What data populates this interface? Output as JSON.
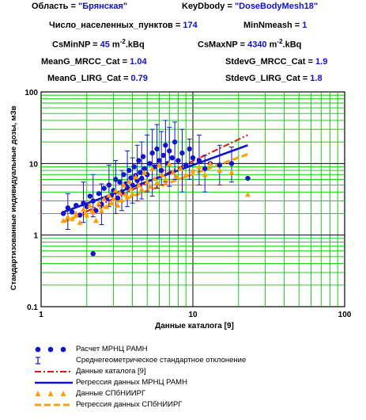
{
  "header": {
    "region_label": "Область = ",
    "region_value": "\"Брянская\"",
    "keydbody_label": "KeyDbody = ",
    "keydbody_value": "\"DoseBodyMesh18\"",
    "np_count_label": "Число_населенных_пунктов = ",
    "np_count_value": "174",
    "minnmeash_label": "MinNmeash = ",
    "minnmeash_value": "1",
    "csmin_label": "CsMinNP = ",
    "csmin_value": "45",
    "csmin_unit_a": " m",
    "csmin_unit_exp": "-2",
    "csmin_unit_b": ".kBq",
    "csmax_label": "CsMaxNP = ",
    "csmax_value": "4340",
    "csmax_unit_a": " m",
    "csmax_unit_exp": "-2",
    "csmax_unit_b": ".kBq",
    "meang_mrcc_label": "MeanG_MRCC_Cat = ",
    "meang_mrcc_value": "1.04",
    "stdevg_mrcc_label": "StdevG_MRCC_Cat = ",
    "stdevg_mrcc_value": "1.9",
    "meang_lirg_label": "MeanG_LIRG_Cat = ",
    "meang_lirg_value": "0.79",
    "stdevg_lirg_label": "StdevG_LIRG_Cat = ",
    "stdevg_lirg_value": "1.8"
  },
  "colors": {
    "grid": "#00c800",
    "mrcc": "#1414c8",
    "lirg": "#ffa000",
    "catalog": "#dc1414",
    "value": "#1010c8"
  },
  "chart_data": {
    "type": "scatter",
    "x_scale": "log",
    "y_scale": "log",
    "xlim": [
      1,
      100
    ],
    "ylim": [
      0.1,
      100
    ],
    "xlabel": "Данные каталога [9]",
    "ylabel": "Стандартизованные индивидуальные дозы, мЗв",
    "x_ticks": [
      "1",
      "10",
      "100"
    ],
    "y_ticks": [
      "0.1",
      "1",
      "10",
      "100"
    ],
    "grid": true,
    "series": [
      {
        "name": "Расчет МРНЦ РАМН",
        "kind": "points",
        "points": [
          [
            1.4,
            2.0
          ],
          [
            1.5,
            2.4
          ],
          [
            1.6,
            2.1
          ],
          [
            1.7,
            2.6
          ],
          [
            1.8,
            1.9
          ],
          [
            1.9,
            2.8
          ],
          [
            2.0,
            2.5
          ],
          [
            2.1,
            3.5
          ],
          [
            2.2,
            3.0
          ],
          [
            2.2,
            0.55
          ],
          [
            2.3,
            2.2
          ],
          [
            2.4,
            3.8
          ],
          [
            2.5,
            2.7
          ],
          [
            2.6,
            4.5
          ],
          [
            2.7,
            3.2
          ],
          [
            2.8,
            5.0
          ],
          [
            2.9,
            3.6
          ],
          [
            3.0,
            4.2
          ],
          [
            3.1,
            6.0
          ],
          [
            3.2,
            3.3
          ],
          [
            3.3,
            5.5
          ],
          [
            3.4,
            4.0
          ],
          [
            3.5,
            7.0
          ],
          [
            3.6,
            5.2
          ],
          [
            3.7,
            4.6
          ],
          [
            3.8,
            8.0
          ],
          [
            3.9,
            6.3
          ],
          [
            4.0,
            5.0
          ],
          [
            4.1,
            9.0
          ],
          [
            4.2,
            6.8
          ],
          [
            4.3,
            5.8
          ],
          [
            4.4,
            11.0
          ],
          [
            4.5,
            7.5
          ],
          [
            4.6,
            6.2
          ],
          [
            4.7,
            12.5
          ],
          [
            4.8,
            8.5
          ],
          [
            5.0,
            7.0
          ],
          [
            5.2,
            10.0
          ],
          [
            5.4,
            14.0
          ],
          [
            5.6,
            9.0
          ],
          [
            5.8,
            16.0
          ],
          [
            6.0,
            11.0
          ],
          [
            6.2,
            8.0
          ],
          [
            6.4,
            13.0
          ],
          [
            6.6,
            18.0
          ],
          [
            6.8,
            10.0
          ],
          [
            7.0,
            15.0
          ],
          [
            7.3,
            12.0
          ],
          [
            7.6,
            20.0
          ],
          [
            8.0,
            11.0
          ],
          [
            8.5,
            14.0
          ],
          [
            9.0,
            9.5
          ],
          [
            9.5,
            16.0
          ],
          [
            10.0,
            12.0
          ],
          [
            11.0,
            11.0
          ],
          [
            12.0,
            8.5
          ],
          [
            13.0,
            10.0
          ],
          [
            15.0,
            9.5
          ],
          [
            18.0,
            10.0
          ],
          [
            23.0,
            6.2
          ]
        ]
      },
      {
        "name": "Среднегеометрическое стандартное отклонение",
        "kind": "errorbars",
        "points": [
          [
            1.5,
            1.2,
            3.8
          ],
          [
            1.9,
            1.5,
            5.5
          ],
          [
            2.2,
            1.8,
            7.0
          ],
          [
            2.5,
            1.4,
            5.2
          ],
          [
            2.8,
            2.5,
            9.5
          ],
          [
            3.1,
            2.0,
            11.0
          ],
          [
            3.4,
            2.2,
            8.0
          ],
          [
            3.7,
            2.5,
            15.0
          ],
          [
            4.0,
            2.8,
            12.0
          ],
          [
            4.3,
            3.0,
            18.0
          ],
          [
            4.6,
            3.2,
            20.0
          ],
          [
            5.0,
            4.0,
            25.0
          ],
          [
            5.4,
            3.5,
            30.0
          ],
          [
            5.8,
            4.5,
            35.0
          ],
          [
            6.2,
            5.0,
            28.0
          ],
          [
            6.6,
            5.5,
            40.0
          ],
          [
            7.0,
            4.8,
            32.0
          ],
          [
            7.6,
            6.0,
            38.0
          ],
          [
            8.5,
            4.0,
            30.0
          ],
          [
            9.5,
            6.0,
            22.0
          ],
          [
            11.0,
            5.0,
            25.0
          ],
          [
            12.0,
            4.0,
            13.0
          ],
          [
            15.0,
            5.0,
            18.0
          ],
          [
            18.0,
            5.5,
            17.0
          ]
        ]
      },
      {
        "name": "Данные каталога [9]",
        "kind": "line",
        "points": [
          [
            1.4,
            1.5
          ],
          [
            23.0,
            25.0
          ]
        ]
      },
      {
        "name": "Регрессия данных МРНЦ РАМН",
        "kind": "line",
        "points": [
          [
            1.4,
            2.1
          ],
          [
            23.0,
            18.0
          ]
        ]
      },
      {
        "name": "Данные СПбНИИРГ",
        "kind": "points",
        "points": [
          [
            1.4,
            1.6
          ],
          [
            1.5,
            1.8
          ],
          [
            1.6,
            1.7
          ],
          [
            1.7,
            2.0
          ],
          [
            1.8,
            1.5
          ],
          [
            1.9,
            2.3
          ],
          [
            2.0,
            1.9
          ],
          [
            2.1,
            2.6
          ],
          [
            2.2,
            2.1
          ],
          [
            2.3,
            1.6
          ],
          [
            2.4,
            2.8
          ],
          [
            2.5,
            2.2
          ],
          [
            2.6,
            3.2
          ],
          [
            2.7,
            2.5
          ],
          [
            2.8,
            3.6
          ],
          [
            2.9,
            2.8
          ],
          [
            3.0,
            3.2
          ],
          [
            3.1,
            4.2
          ],
          [
            3.2,
            2.6
          ],
          [
            3.3,
            3.9
          ],
          [
            3.4,
            3.1
          ],
          [
            3.5,
            5.0
          ],
          [
            3.6,
            3.7
          ],
          [
            3.7,
            3.4
          ],
          [
            3.8,
            5.6
          ],
          [
            3.9,
            4.5
          ],
          [
            4.0,
            3.8
          ],
          [
            4.2,
            6.5
          ],
          [
            4.4,
            5.0
          ],
          [
            4.6,
            4.4
          ],
          [
            4.8,
            7.5
          ],
          [
            5.0,
            5.6
          ],
          [
            5.2,
            4.8
          ],
          [
            5.4,
            8.5
          ],
          [
            5.6,
            6.2
          ],
          [
            5.8,
            5.4
          ],
          [
            6.0,
            9.5
          ],
          [
            6.3,
            7.0
          ],
          [
            6.6,
            6.0
          ],
          [
            7.0,
            10.0
          ],
          [
            7.4,
            7.5
          ],
          [
            7.8,
            6.6
          ],
          [
            8.3,
            8.5
          ],
          [
            9.0,
            7.0
          ],
          [
            10.0,
            8.0
          ],
          [
            11.0,
            9.0
          ],
          [
            12.0,
            7.0
          ],
          [
            13.0,
            10.0
          ],
          [
            15.0,
            8.0
          ],
          [
            18.0,
            7.5
          ],
          [
            23.0,
            3.7
          ]
        ]
      },
      {
        "name": "Регрессия данных СПбНИИРГ",
        "kind": "line",
        "points": [
          [
            1.4,
            1.55
          ],
          [
            23.0,
            13.5
          ]
        ]
      }
    ]
  }
}
